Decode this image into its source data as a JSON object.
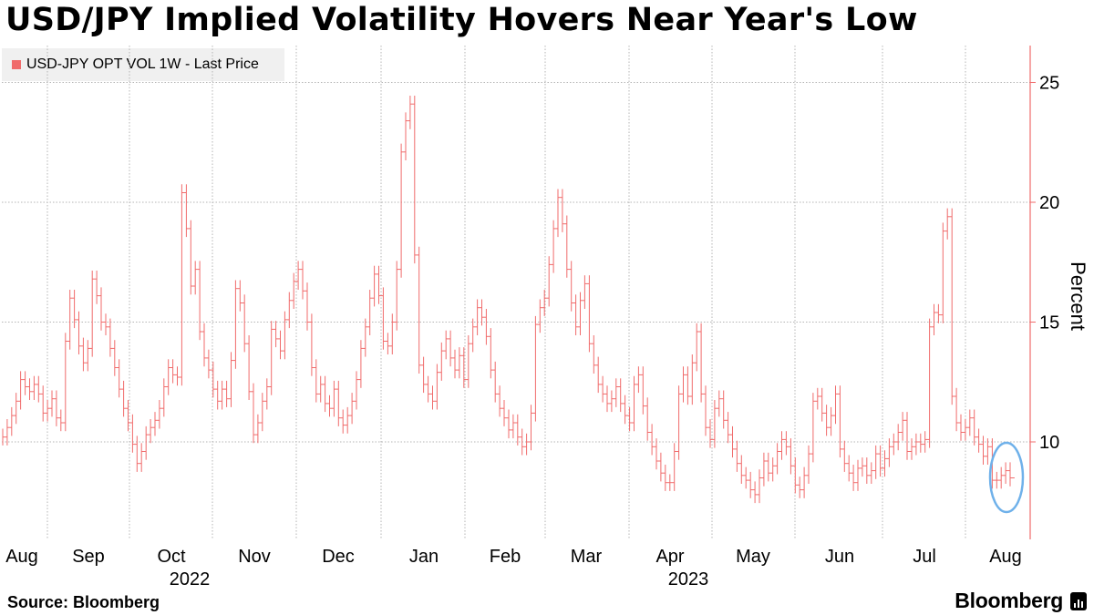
{
  "title": "USD/JPY Implied Volatility Hovers Near Year's Low",
  "legend": {
    "label": "USD-JPY OPT VOL 1W - Last Price",
    "color": "#f06b6b"
  },
  "footer": {
    "source": "Source: Bloomberg",
    "brand": "Bloomberg"
  },
  "colors": {
    "series": "#f06b6b",
    "axis": "#f06b6b",
    "grid": "#b4b4b4",
    "highlight": "#6fb1ea"
  },
  "chart_data": {
    "type": "line",
    "ylabel": "Percent",
    "ylim": [
      6,
      26
    ],
    "yticks": [
      10,
      15,
      20,
      25
    ],
    "grid": true,
    "legend_position": "top-left",
    "month_labels": [
      "Aug",
      "Sep",
      "Oct",
      "Nov",
      "Dec",
      "Jan",
      "Feb",
      "Mar",
      "Apr",
      "May",
      "Jun",
      "Jul",
      "Aug"
    ],
    "year_labels": [
      {
        "label": "2022",
        "under": "Oct"
      },
      {
        "label": "2023",
        "under": "Apr"
      }
    ],
    "annotation": {
      "type": "ellipse",
      "note": "recent lows highlighted",
      "x_range": [
        "Aug"
      ]
    },
    "series": [
      {
        "name": "USD-JPY OPT VOL 1W - Last Price",
        "values": [
          10.2,
          10.6,
          11.1,
          11.7,
          12.6,
          12.3,
          12.1,
          12.4,
          12.0,
          11.2,
          11.4,
          11.8,
          11.0,
          10.8,
          14.2,
          16.0,
          15.1,
          14.0,
          13.3,
          13.9,
          16.8,
          16.1,
          15.0,
          14.8,
          13.9,
          13.1,
          12.2,
          11.4,
          10.8,
          9.9,
          9.1,
          9.6,
          10.3,
          10.6,
          10.9,
          11.4,
          12.3,
          13.1,
          12.8,
          12.7,
          20.4,
          18.9,
          16.5,
          17.2,
          14.6,
          13.5,
          13.0,
          12.2,
          11.7,
          12.2,
          11.8,
          13.4,
          16.4,
          15.8,
          14.1,
          12.1,
          10.3,
          10.8,
          11.7,
          12.3,
          14.7,
          14.3,
          13.8,
          15.1,
          15.9,
          16.7,
          17.2,
          16.3,
          15.0,
          13.1,
          12.0,
          12.4,
          11.6,
          11.4,
          12.2,
          11.0,
          10.7,
          11.1,
          11.7,
          12.6,
          13.9,
          14.8,
          16.0,
          17.0,
          16.1,
          14.2,
          14.0,
          15.0,
          17.2,
          22.1,
          23.4,
          24.1,
          17.8,
          13.2,
          12.4,
          12.0,
          11.7,
          12.9,
          13.8,
          14.3,
          13.5,
          13.0,
          13.6,
          12.6,
          14.1,
          14.8,
          15.6,
          15.2,
          14.4,
          13.0,
          12.0,
          11.4,
          11.0,
          10.5,
          10.8,
          10.2,
          9.8,
          10.0,
          11.2,
          14.9,
          15.6,
          16.0,
          17.4,
          18.9,
          20.2,
          19.1,
          17.2,
          15.8,
          14.8,
          15.9,
          16.6,
          14.1,
          13.2,
          12.4,
          12.0,
          11.6,
          11.8,
          12.3,
          11.6,
          11.1,
          10.8,
          12.4,
          12.8,
          11.5,
          10.4,
          9.8,
          9.2,
          8.7,
          8.3,
          8.3,
          9.6,
          12.0,
          12.8,
          11.9,
          13.3,
          14.6,
          12.0,
          10.6,
          10.1,
          11.4,
          11.8,
          10.9,
          10.3,
          9.7,
          9.1,
          8.6,
          8.4,
          8.0,
          7.8,
          8.5,
          9.2,
          8.7,
          9.0,
          9.6,
          10.1,
          9.8,
          9.0,
          8.2,
          8.0,
          8.6,
          9.5,
          11.7,
          11.9,
          11.2,
          10.6,
          11.1,
          12.0,
          9.7,
          9.1,
          8.7,
          8.3,
          8.9,
          9.0,
          8.6,
          8.8,
          9.5,
          8.9,
          9.3,
          9.8,
          10.0,
          10.4,
          10.9,
          9.6,
          9.8,
          10.0,
          9.9,
          10.1,
          14.8,
          15.4,
          15.3,
          18.8,
          19.4,
          11.9,
          10.8,
          10.4,
          10.6,
          11.0,
          10.2,
          9.9,
          9.4,
          9.8,
          8.4,
          8.4,
          8.6,
          8.8,
          8.5
        ]
      }
    ]
  }
}
